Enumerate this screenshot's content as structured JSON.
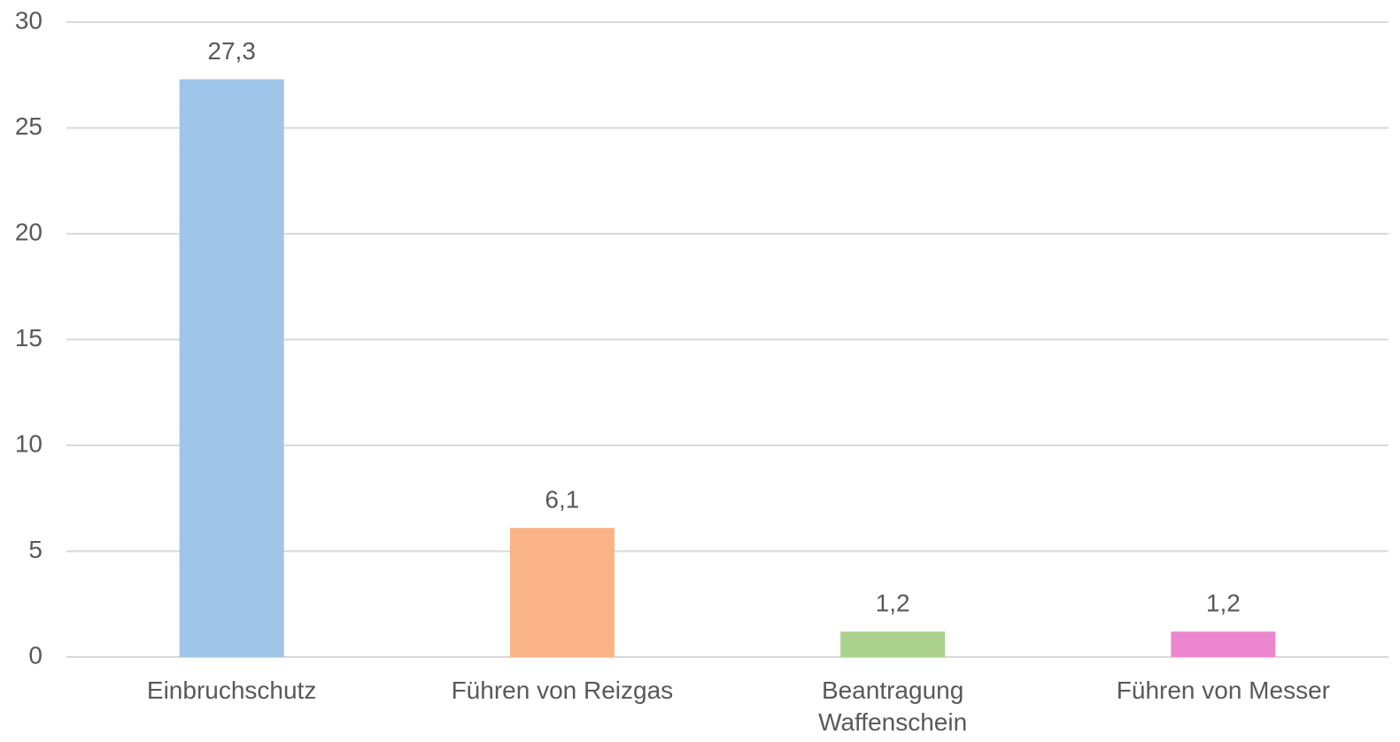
{
  "chart_data": {
    "type": "bar",
    "categories": [
      "Einbruchschutz",
      "Führen von Reizgas",
      "Beantragung Waffenschein",
      "Führen von Messer"
    ],
    "values": [
      27.3,
      6.1,
      1.2,
      1.2
    ],
    "value_labels": [
      "27,3",
      "6,1",
      "1,2",
      "1,2"
    ],
    "colors": [
      "#9fc5e8",
      "#f9b386",
      "#acd18e",
      "#ec87cf"
    ],
    "ylim": [
      0,
      30
    ],
    "yticks": [
      0,
      5,
      10,
      15,
      20,
      25,
      30
    ],
    "grid": true
  }
}
